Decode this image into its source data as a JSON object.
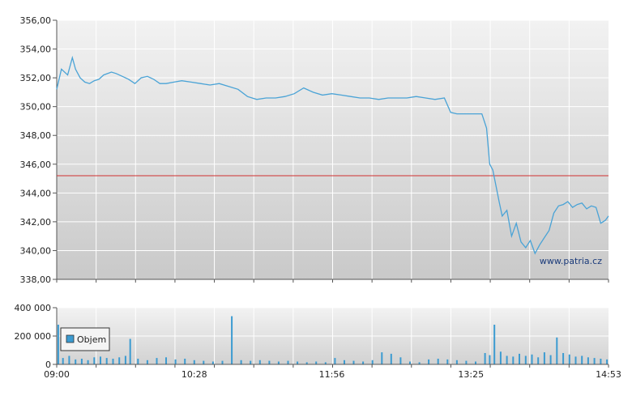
{
  "chart_data": [
    {
      "type": "line",
      "title": "",
      "xlabel": "",
      "ylabel": "",
      "ylim": [
        338,
        356
      ],
      "y_ticks": [
        "338,00",
        "340,00",
        "342,00",
        "344,00",
        "346,00",
        "348,00",
        "350,00",
        "352,00",
        "354,00",
        "356,00"
      ],
      "y_tick_values": [
        338,
        340,
        342,
        344,
        346,
        348,
        350,
        352,
        354,
        356
      ],
      "x_range_minutes": [
        540,
        893
      ],
      "reference_line": {
        "value": 345.2,
        "color": "#d03030"
      },
      "watermark": "www.patria.cz",
      "grid": true,
      "series": [
        {
          "color": "#4aa3d6",
          "x": [
            "09:00",
            "09:03",
            "09:07",
            "09:10",
            "09:12",
            "09:15",
            "09:18",
            "09:21",
            "09:24",
            "09:27",
            "09:30",
            "09:35",
            "09:38",
            "09:42",
            "09:46",
            "09:50",
            "09:54",
            "09:58",
            "10:02",
            "10:06",
            "10:10",
            "10:15",
            "10:20",
            "10:26",
            "10:32",
            "10:38",
            "10:44",
            "10:50",
            "10:56",
            "11:02",
            "11:08",
            "11:14",
            "11:20",
            "11:26",
            "11:32",
            "11:38",
            "11:44",
            "11:50",
            "11:56",
            "12:02",
            "12:08",
            "12:14",
            "12:20",
            "12:26",
            "12:32",
            "12:38",
            "12:44",
            "12:50",
            "12:56",
            "13:02",
            "13:08",
            "13:12",
            "13:16",
            "13:22",
            "13:28",
            "13:32",
            "13:35",
            "13:37",
            "13:39",
            "13:41",
            "13:43",
            "13:45",
            "13:48",
            "13:51",
            "13:54",
            "13:57",
            "14:00",
            "14:03",
            "14:06",
            "14:09",
            "14:12",
            "14:15",
            "14:18",
            "14:21",
            "14:24",
            "14:27",
            "14:30",
            "14:33",
            "14:36",
            "14:39",
            "14:42",
            "14:45",
            "14:48",
            "14:51",
            "14:53"
          ],
          "y": [
            351.2,
            352.6,
            352.2,
            353.4,
            352.6,
            352.0,
            351.7,
            351.6,
            351.8,
            351.9,
            352.2,
            352.4,
            352.3,
            352.1,
            351.9,
            351.6,
            352.0,
            352.1,
            351.9,
            351.6,
            351.6,
            351.7,
            351.8,
            351.7,
            351.6,
            351.5,
            351.6,
            351.4,
            351.2,
            350.7,
            350.5,
            350.6,
            350.6,
            350.7,
            350.9,
            351.3,
            351.0,
            350.8,
            350.9,
            350.8,
            350.7,
            350.6,
            350.6,
            350.5,
            350.6,
            350.6,
            350.6,
            350.7,
            350.6,
            350.5,
            350.6,
            349.6,
            349.5,
            349.5,
            349.5,
            349.5,
            348.5,
            346.0,
            345.6,
            344.5,
            343.4,
            342.4,
            342.8,
            341.0,
            341.9,
            340.6,
            340.2,
            340.7,
            339.8,
            340.4,
            340.9,
            341.4,
            342.6,
            343.1,
            343.2,
            343.4,
            343.0,
            343.2,
            343.3,
            342.9,
            343.1,
            343.0,
            341.9,
            342.1,
            342.4
          ]
        }
      ]
    },
    {
      "type": "bar",
      "title": "",
      "xlabel": "",
      "ylabel": "",
      "ylim": [
        0,
        400000
      ],
      "y_ticks": [
        "0",
        "200 000",
        "400 000"
      ],
      "y_tick_values": [
        0,
        200000,
        400000
      ],
      "x_ticks": [
        "09:00",
        "10:28",
        "11:56",
        "13:25",
        "14:53"
      ],
      "legend": {
        "label": "Objem",
        "position": "top-left",
        "color": "#3b9bd1"
      },
      "series": [
        {
          "name": "Objem",
          "color": "#3b9bd1",
          "x": [
            "09:01",
            "09:04",
            "09:08",
            "09:12",
            "09:16",
            "09:20",
            "09:24",
            "09:28",
            "09:32",
            "09:36",
            "09:40",
            "09:44",
            "09:47",
            "09:52",
            "09:58",
            "10:04",
            "10:10",
            "10:16",
            "10:22",
            "10:28",
            "10:34",
            "10:40",
            "10:46",
            "10:52",
            "10:58",
            "11:04",
            "11:10",
            "11:16",
            "11:22",
            "11:28",
            "11:34",
            "11:40",
            "11:46",
            "11:52",
            "11:58",
            "12:04",
            "12:10",
            "12:16",
            "12:22",
            "12:28",
            "12:34",
            "12:40",
            "12:46",
            "12:52",
            "12:58",
            "13:04",
            "13:10",
            "13:16",
            "13:22",
            "13:28",
            "13:34",
            "13:37",
            "13:40",
            "13:44",
            "13:48",
            "13:52",
            "13:56",
            "14:00",
            "14:04",
            "14:08",
            "14:12",
            "14:16",
            "14:20",
            "14:24",
            "14:28",
            "14:32",
            "14:36",
            "14:40",
            "14:44",
            "14:48",
            "14:52"
          ],
          "values": [
            280000,
            45000,
            60000,
            35000,
            40000,
            30000,
            50000,
            55000,
            45000,
            40000,
            50000,
            60000,
            180000,
            40000,
            30000,
            45000,
            50000,
            35000,
            40000,
            30000,
            25000,
            20000,
            25000,
            340000,
            30000,
            25000,
            30000,
            25000,
            20000,
            25000,
            20000,
            15000,
            20000,
            15000,
            45000,
            30000,
            25000,
            20000,
            30000,
            85000,
            75000,
            50000,
            20000,
            15000,
            35000,
            40000,
            35000,
            30000,
            25000,
            20000,
            80000,
            65000,
            280000,
            90000,
            60000,
            55000,
            75000,
            60000,
            70000,
            50000,
            85000,
            65000,
            190000,
            80000,
            70000,
            55000,
            60000,
            50000,
            45000,
            40000,
            35000
          ]
        }
      ]
    }
  ]
}
